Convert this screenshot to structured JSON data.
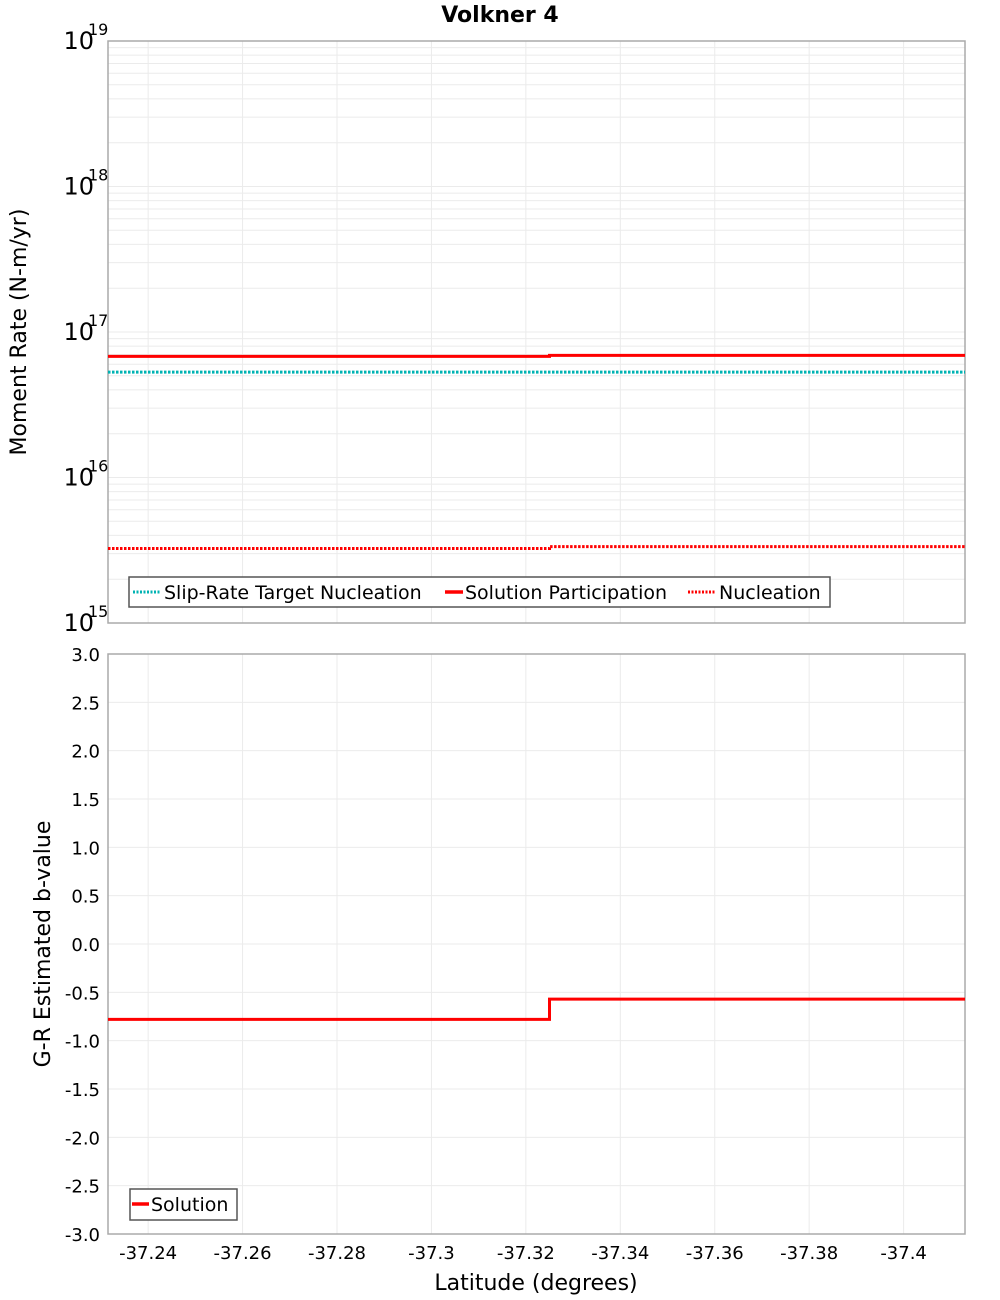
{
  "title": "Volkner 4",
  "colors": {
    "solution": "#ff0000",
    "slip_rate_target": "#00b3b3",
    "nucleation": "#ff0000",
    "grid": "#ebebeb",
    "frame": "#aaaaaa"
  },
  "top_panel": {
    "ylabel": "Moment Rate (N-m/yr)",
    "ytick_base": "10",
    "yticks": [
      {
        "exp": "19",
        "value": 1e+19
      },
      {
        "exp": "18",
        "value": 1e+18
      },
      {
        "exp": "17",
        "value": 1e+17
      },
      {
        "exp": "16",
        "value": 1e+16
      },
      {
        "exp": "15",
        "value": 1000000000000000.0
      }
    ],
    "legend": [
      {
        "label": "Slip-Rate Target Nucleation",
        "style": "dotted",
        "color": "#00b3b3"
      },
      {
        "label": "Solution Participation",
        "style": "solid",
        "color": "#ff0000"
      },
      {
        "label": "Nucleation",
        "style": "dotted",
        "color": "#ff0000"
      }
    ]
  },
  "bottom_panel": {
    "ylabel": "G-R Estimated b-value",
    "yticks": [
      "3.0",
      "2.5",
      "2.0",
      "1.5",
      "1.0",
      "0.5",
      "0.0",
      "-0.5",
      "-1.0",
      "-1.5",
      "-2.0",
      "-2.5",
      "-3.0"
    ],
    "legend": [
      {
        "label": "Solution",
        "style": "solid",
        "color": "#ff0000"
      }
    ]
  },
  "xaxis": {
    "label": "Latitude (degrees)",
    "ticks": [
      "-37.24",
      "-37.26",
      "-37.28",
      "-37.3",
      "-37.32",
      "-37.34",
      "-37.36",
      "-37.38",
      "-37.4"
    ]
  },
  "chart_data": [
    {
      "type": "line",
      "title": "Volkner 4",
      "xlabel": "Latitude (degrees)",
      "ylabel": "Moment Rate (N-m/yr)",
      "yscale": "log",
      "ylim": [
        1000000000000000.0,
        1e+19
      ],
      "xlim": [
        -37.2315,
        -37.413
      ],
      "x_inverted": true,
      "grid": true,
      "legend_position": "lower-left",
      "xticks": [
        -37.24,
        -37.26,
        -37.28,
        -37.3,
        -37.32,
        -37.34,
        -37.36,
        -37.38,
        -37.4
      ],
      "x": [
        -37.2315,
        -37.325,
        -37.325,
        -37.413
      ],
      "series": [
        {
          "name": "Slip-Rate Target Nucleation",
          "style": "dotted",
          "color": "#00b3b3",
          "values": [
            5.3e+16,
            5.3e+16,
            5.3e+16,
            5.3e+16
          ]
        },
        {
          "name": "Solution Participation",
          "style": "solid",
          "color": "#ff0000",
          "values": [
            6.8e+16,
            6.8e+16,
            6.9e+16,
            6.9e+16
          ]
        },
        {
          "name": "Nucleation",
          "style": "dotted",
          "color": "#ff0000",
          "values": [
            3250000000000000.0,
            3250000000000000.0,
            3350000000000000.0,
            3350000000000000.0
          ]
        }
      ]
    },
    {
      "type": "line",
      "title": "",
      "xlabel": "Latitude (degrees)",
      "ylabel": "G-R Estimated b-value",
      "yscale": "linear",
      "ylim": [
        -3.0,
        3.0
      ],
      "xlim": [
        -37.2315,
        -37.413
      ],
      "x_inverted": true,
      "grid": true,
      "legend_position": "lower-left",
      "xticks": [
        -37.24,
        -37.26,
        -37.28,
        -37.3,
        -37.32,
        -37.34,
        -37.36,
        -37.38,
        -37.4
      ],
      "yticks": [
        3.0,
        2.5,
        2.0,
        1.5,
        1.0,
        0.5,
        0.0,
        -0.5,
        -1.0,
        -1.5,
        -2.0,
        -2.5,
        -3.0
      ],
      "x": [
        -37.2315,
        -37.325,
        -37.325,
        -37.413
      ],
      "series": [
        {
          "name": "Solution",
          "style": "solid",
          "color": "#ff0000",
          "values": [
            -0.78,
            -0.78,
            -0.57,
            -0.57
          ]
        }
      ]
    }
  ]
}
